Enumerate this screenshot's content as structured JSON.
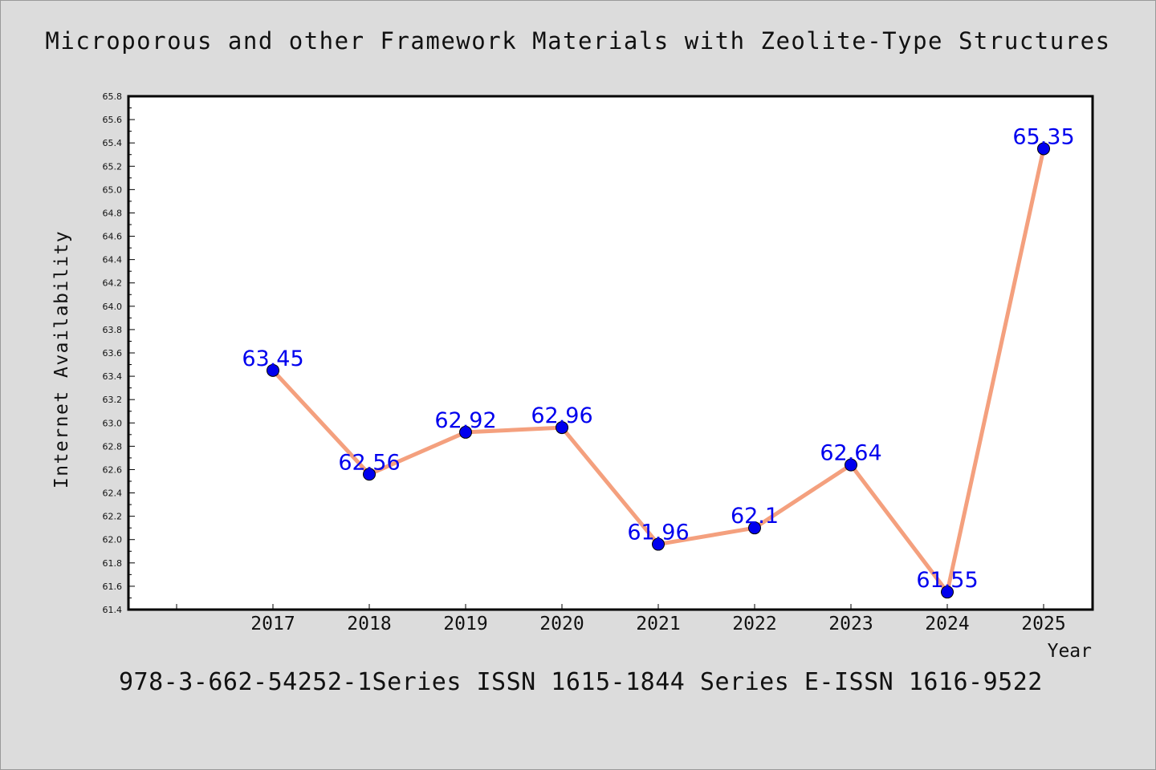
{
  "page": {
    "title": "Microporous and other Framework Materials with Zeolite-Type Structures",
    "footer": "978-3-662-54252-1Series ISSN 1615-1844 Series E-ISSN 1616-9522"
  },
  "colors": {
    "background": "#dcdcdc",
    "plot_background": "#ffffff",
    "line": "#f4a07e",
    "marker": "#0000ee",
    "data_label": "#0000ee"
  },
  "chart_data": {
    "type": "line",
    "title": "Microporous and other Framework Materials with Zeolite-Type Structures",
    "xlabel": "Year",
    "ylabel": "Internet Availability",
    "categories": [
      "2017",
      "2018",
      "2019",
      "2020",
      "2021",
      "2022",
      "2023",
      "2024",
      "2025"
    ],
    "series": [
      {
        "values": [
          63.45,
          62.56,
          62.92,
          62.96,
          61.96,
          62.1,
          62.64,
          61.55,
          65.35
        ],
        "labels": [
          "63.45",
          "62.56",
          "62.92",
          "62.96",
          "61.96",
          "62.1",
          "62.64",
          "61.55",
          "65.35"
        ]
      }
    ],
    "ylim": [
      61.4,
      65.8
    ],
    "yticks": [
      "61.4",
      "61.6",
      "61.8",
      "62.0",
      "62.2",
      "62.4",
      "62.6",
      "62.8",
      "63.0",
      "63.2",
      "63.4",
      "63.6",
      "63.8",
      "64.0",
      "64.2",
      "64.4",
      "64.6",
      "64.8",
      "65.0",
      "65.2",
      "65.4",
      "65.6",
      "65.8"
    ],
    "grid": false,
    "legend": "none"
  }
}
